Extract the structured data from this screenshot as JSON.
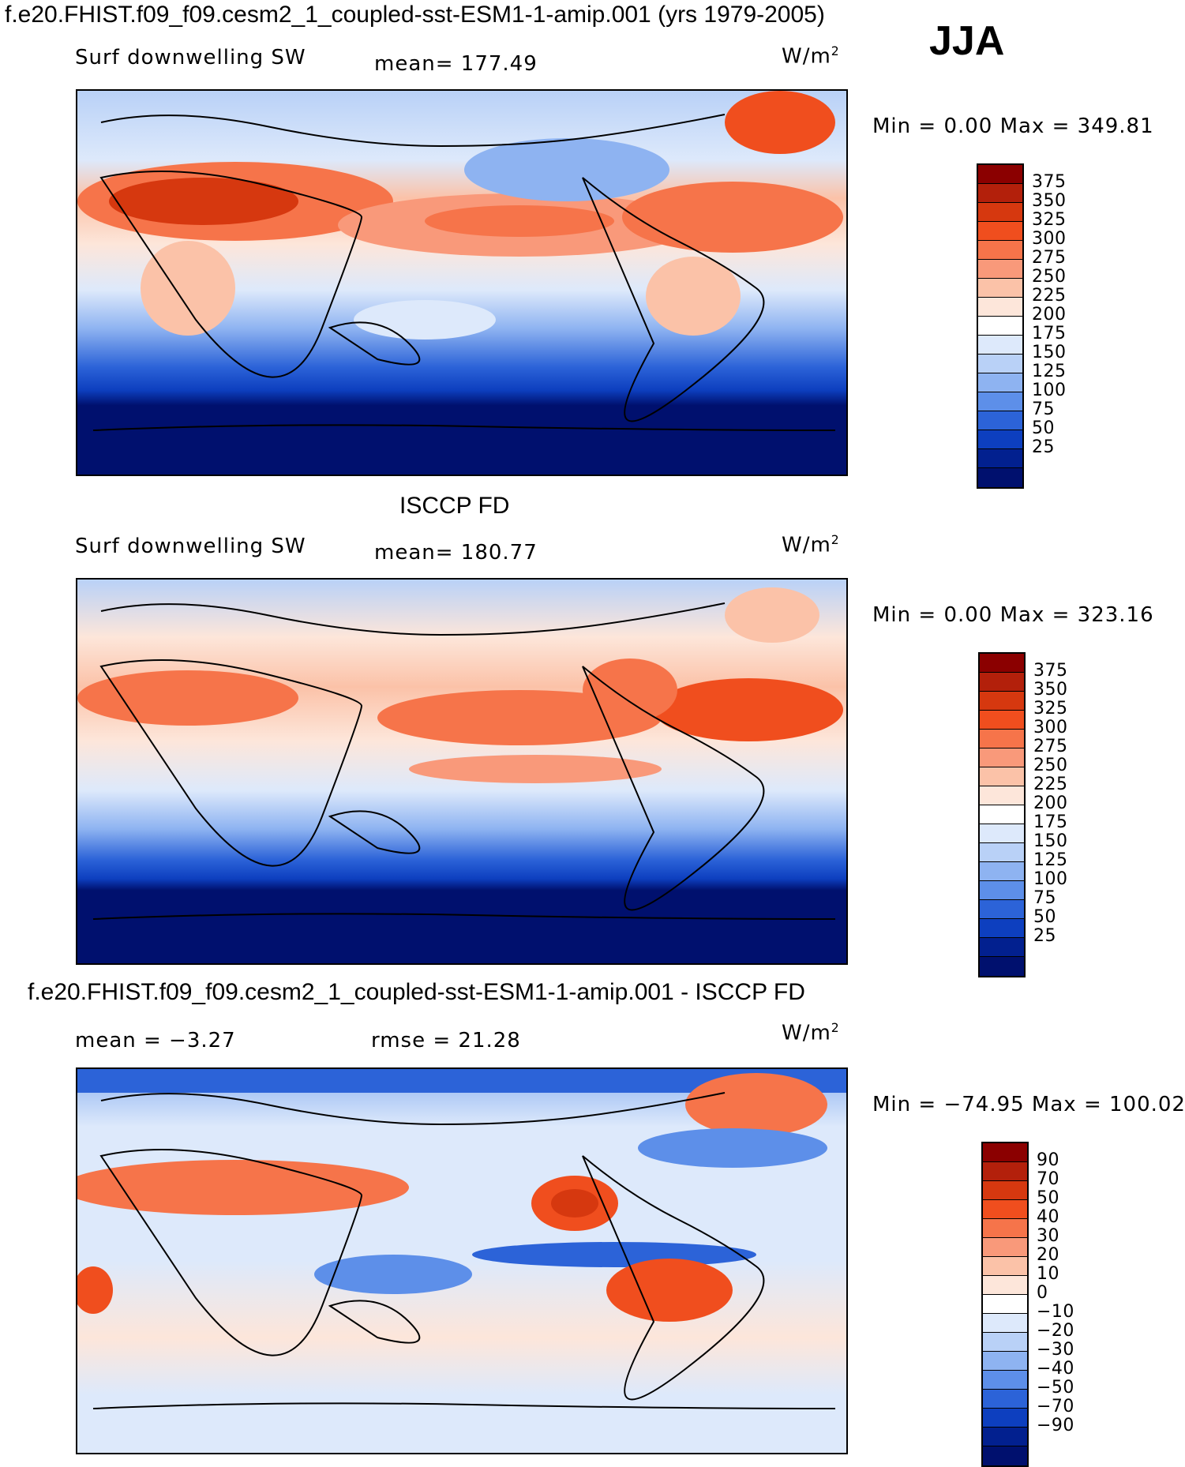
{
  "header": {
    "title": "f.e20.FHIST.f09_f09.cesm2_1_coupled-sst-ESM1-1-amip.001 (yrs 1979-2005)",
    "season": "JJA"
  },
  "panels": [
    {
      "id": "model",
      "heading": "",
      "variable": "Surf downwelling SW",
      "stat": "mean=  177.49",
      "units": "W/m",
      "units_sup": "2",
      "minmax": "Min =     0.00 Max = 349.81"
    },
    {
      "id": "obs",
      "heading": "ISCCP FD",
      "variable": "Surf downwelling SW",
      "stat": "mean=  180.77",
      "units": "W/m",
      "units_sup": "2",
      "minmax": "Min =     0.00 Max = 323.16"
    },
    {
      "id": "diff",
      "heading": "f.e20.FHIST.f09_f09.cesm2_1_coupled-sst-ESM1-1-amip.001 - ISCCP FD",
      "variable": "mean =   −3.27",
      "stat": "rmse =   21.28",
      "units": "W/m",
      "units_sup": "2",
      "minmax": "Min = −74.95 Max = 100.02"
    }
  ],
  "chart_data": [
    {
      "type": "heatmap",
      "name": "model",
      "colorbar_levels": [
        375,
        350,
        325,
        300,
        275,
        250,
        225,
        200,
        175,
        150,
        125,
        100,
        75,
        50,
        25
      ],
      "colorbar_colors": [
        "#8b0000",
        "#b3200b",
        "#d6380f",
        "#f04e1e",
        "#f6744a",
        "#f9997a",
        "#fbc2a8",
        "#fde6da",
        "#ffffff",
        "#dde9fb",
        "#b9d1f7",
        "#8eb3f1",
        "#5d8fe9",
        "#2c63d8",
        "#0d3fbf",
        "#02208f",
        "#00106e"
      ],
      "min": 0.0,
      "max": 349.81,
      "mean": 177.49
    },
    {
      "type": "heatmap",
      "name": "obs",
      "colorbar_levels": [
        375,
        350,
        325,
        300,
        275,
        250,
        225,
        200,
        175,
        150,
        125,
        100,
        75,
        50,
        25
      ],
      "min": 0.0,
      "max": 323.16,
      "mean": 180.77
    },
    {
      "type": "heatmap",
      "name": "diff",
      "colorbar_levels": [
        "90",
        "70",
        "50",
        "40",
        "30",
        "20",
        "10",
        "0",
        "−10",
        "−20",
        "−30",
        "−40",
        "−50",
        "−70",
        "−90"
      ],
      "colorbar_colors": [
        "#8b0000",
        "#b3200b",
        "#d6380f",
        "#f04e1e",
        "#f6744a",
        "#f9997a",
        "#fbc2a8",
        "#fde6da",
        "#ffffff",
        "#dde9fb",
        "#b9d1f7",
        "#8eb3f1",
        "#5d8fe9",
        "#2c63d8",
        "#0d3fbf",
        "#02208f",
        "#00106e"
      ],
      "min": -74.95,
      "max": 100.02,
      "mean": -3.27,
      "rmse": 21.28
    }
  ]
}
